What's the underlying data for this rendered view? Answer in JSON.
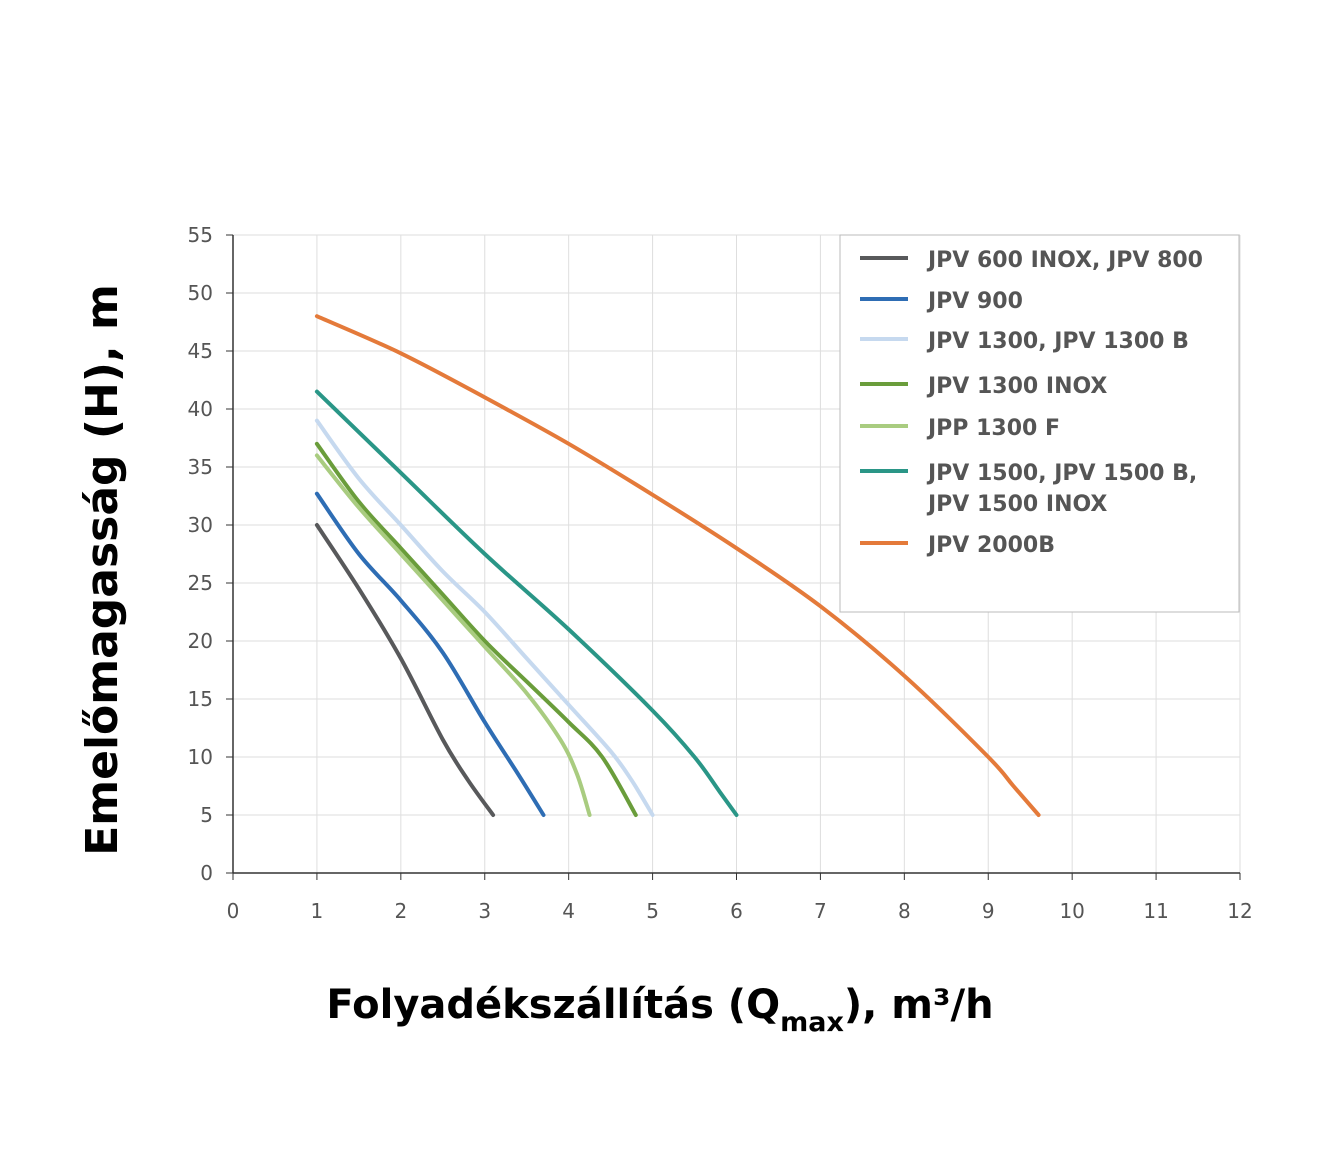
{
  "chart_data": {
    "type": "line",
    "title": "",
    "xlabel": {
      "main": "Folyadékszállítás (Q",
      "sub": "max",
      "tail": "), m³/h"
    },
    "ylabel": "Emelőmagasság (H), m",
    "xlim": [
      0,
      12
    ],
    "ylim": [
      0,
      55
    ],
    "x_ticks": [
      "0",
      "1",
      "2",
      "3",
      "4",
      "5",
      "6",
      "7",
      "8",
      "9",
      "10",
      "11",
      "12"
    ],
    "y_ticks": [
      "0",
      "5",
      "10",
      "15",
      "20",
      "25",
      "30",
      "35",
      "40",
      "45",
      "50",
      "55"
    ],
    "grid": true,
    "legend_position": "top-right",
    "series": [
      {
        "name": "JPV 600 INOX, JPV 800",
        "color": "#58595b",
        "points": [
          [
            1,
            30
          ],
          [
            1.5,
            24.5
          ],
          [
            2,
            18.5
          ],
          [
            2.5,
            11.5
          ],
          [
            2.8,
            8
          ],
          [
            3.1,
            5
          ]
        ]
      },
      {
        "name": "JPV 900",
        "color": "#2e6db4",
        "points": [
          [
            1,
            32.7
          ],
          [
            1.5,
            27.5
          ],
          [
            2,
            23.5
          ],
          [
            2.5,
            19
          ],
          [
            3,
            13
          ],
          [
            3.4,
            8.5
          ],
          [
            3.7,
            5
          ]
        ]
      },
      {
        "name": "JPV 1300, JPV 1300 B",
        "color": "#c6d9ef",
        "points": [
          [
            1,
            39
          ],
          [
            1.5,
            34
          ],
          [
            2,
            30
          ],
          [
            2.5,
            26
          ],
          [
            3,
            22.5
          ],
          [
            3.5,
            18.5
          ],
          [
            4,
            14.5
          ],
          [
            4.5,
            10.5
          ],
          [
            4.75,
            8
          ],
          [
            5,
            5
          ]
        ]
      },
      {
        "name": "JPV 1300 INOX",
        "color": "#6a9d3b",
        "points": [
          [
            1,
            37
          ],
          [
            1.5,
            32
          ],
          [
            2,
            28
          ],
          [
            2.5,
            24
          ],
          [
            3,
            20
          ],
          [
            3.5,
            16.5
          ],
          [
            4,
            13
          ],
          [
            4.4,
            10
          ],
          [
            4.8,
            5
          ]
        ]
      },
      {
        "name": "JPP 1300 F",
        "color": "#a9cc80",
        "points": [
          [
            1,
            36
          ],
          [
            1.5,
            31.5
          ],
          [
            2,
            27.5
          ],
          [
            2.5,
            23.5
          ],
          [
            3,
            19.5
          ],
          [
            3.5,
            15.5
          ],
          [
            3.9,
            11.5
          ],
          [
            4.1,
            8.5
          ],
          [
            4.25,
            5
          ]
        ]
      },
      {
        "name": "JPV 1500, JPV 1500 B,",
        "name2": "JPV 1500 INOX",
        "color": "#2a9687",
        "points": [
          [
            1,
            41.5
          ],
          [
            2,
            34.5
          ],
          [
            3,
            27.5
          ],
          [
            4,
            21
          ],
          [
            5,
            14
          ],
          [
            5.5,
            10
          ],
          [
            5.8,
            7
          ],
          [
            6,
            5
          ]
        ]
      },
      {
        "name": "JPV 2000B",
        "color": "#e47a3a",
        "points": [
          [
            1,
            48
          ],
          [
            2,
            44.8
          ],
          [
            3,
            41
          ],
          [
            4,
            37
          ],
          [
            5,
            32.6
          ],
          [
            6,
            28
          ],
          [
            7,
            23
          ],
          [
            8,
            17
          ],
          [
            9,
            10
          ],
          [
            9.3,
            7.5
          ],
          [
            9.6,
            5
          ]
        ]
      }
    ]
  }
}
